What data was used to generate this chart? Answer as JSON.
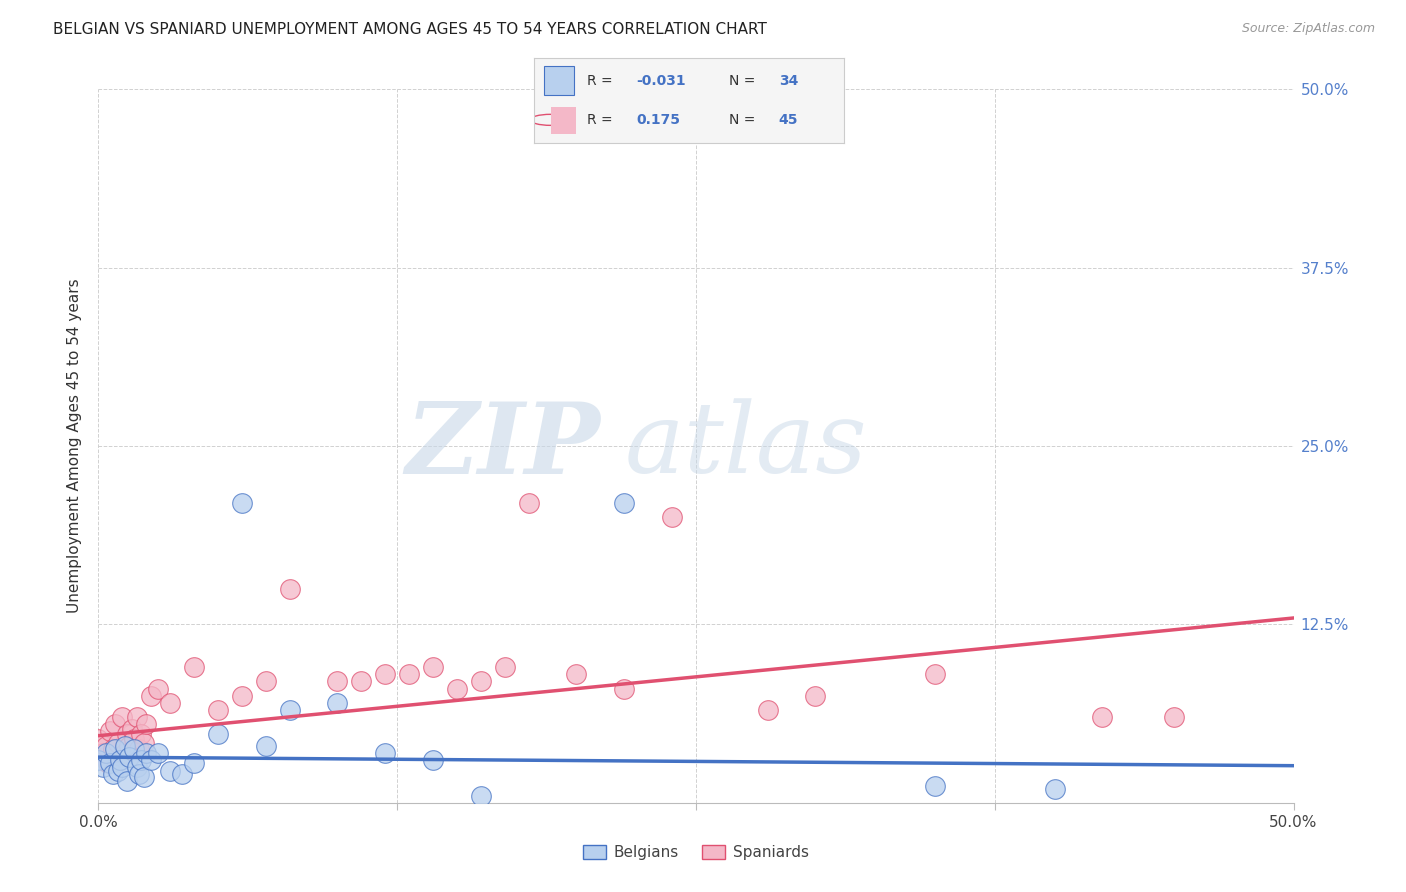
{
  "title": "BELGIAN VS SPANIARD UNEMPLOYMENT AMONG AGES 45 TO 54 YEARS CORRELATION CHART",
  "source": "Source: ZipAtlas.com",
  "ylabel": "Unemployment Among Ages 45 to 54 years",
  "xlim": [
    0.0,
    0.5
  ],
  "ylim": [
    0.0,
    0.5
  ],
  "xticks": [
    0.0,
    0.125,
    0.25,
    0.375,
    0.5
  ],
  "xtick_labels": [
    "0.0%",
    "",
    "",
    "",
    "50.0%"
  ],
  "yticks": [
    0.0,
    0.125,
    0.25,
    0.375,
    0.5
  ],
  "ytick_labels_right": [
    "",
    "12.5%",
    "25.0%",
    "37.5%",
    "50.0%"
  ],
  "background_color": "#ffffff",
  "grid_color": "#cccccc",
  "belgians": {
    "x": [
      0.0,
      0.002,
      0.003,
      0.005,
      0.006,
      0.007,
      0.008,
      0.009,
      0.01,
      0.011,
      0.012,
      0.013,
      0.015,
      0.016,
      0.017,
      0.018,
      0.019,
      0.02,
      0.022,
      0.025,
      0.03,
      0.035,
      0.04,
      0.05,
      0.06,
      0.07,
      0.08,
      0.1,
      0.12,
      0.14,
      0.16,
      0.22,
      0.35,
      0.4
    ],
    "y": [
      0.03,
      0.025,
      0.035,
      0.028,
      0.02,
      0.038,
      0.022,
      0.03,
      0.025,
      0.04,
      0.015,
      0.032,
      0.038,
      0.025,
      0.02,
      0.03,
      0.018,
      0.035,
      0.03,
      0.035,
      0.022,
      0.02,
      0.028,
      0.048,
      0.21,
      0.04,
      0.065,
      0.07,
      0.035,
      0.03,
      0.005,
      0.21,
      0.012,
      0.01
    ],
    "color": "#b8d0ee",
    "edge_color": "#4472c4",
    "R": -0.031,
    "N": 34,
    "line_color": "#4472c4",
    "line_intercept": 0.032,
    "line_slope": -0.012
  },
  "spaniards": {
    "x": [
      0.0,
      0.002,
      0.003,
      0.004,
      0.005,
      0.006,
      0.007,
      0.008,
      0.009,
      0.01,
      0.011,
      0.012,
      0.013,
      0.014,
      0.015,
      0.016,
      0.017,
      0.018,
      0.019,
      0.02,
      0.022,
      0.025,
      0.03,
      0.04,
      0.05,
      0.06,
      0.07,
      0.08,
      0.1,
      0.11,
      0.12,
      0.13,
      0.14,
      0.15,
      0.16,
      0.17,
      0.18,
      0.2,
      0.22,
      0.24,
      0.28,
      0.3,
      0.35,
      0.42,
      0.45
    ],
    "y": [
      0.045,
      0.035,
      0.04,
      0.028,
      0.05,
      0.038,
      0.055,
      0.042,
      0.03,
      0.06,
      0.035,
      0.048,
      0.04,
      0.052,
      0.045,
      0.06,
      0.038,
      0.048,
      0.042,
      0.055,
      0.075,
      0.08,
      0.07,
      0.095,
      0.065,
      0.075,
      0.085,
      0.15,
      0.085,
      0.085,
      0.09,
      0.09,
      0.095,
      0.08,
      0.085,
      0.095,
      0.21,
      0.09,
      0.08,
      0.2,
      0.065,
      0.075,
      0.09,
      0.06,
      0.06
    ],
    "color": "#f4b8c8",
    "edge_color": "#e05070",
    "R": 0.175,
    "N": 45,
    "line_color": "#e05070",
    "line_intercept": 0.047,
    "line_slope": 0.165
  },
  "watermark_zip": "ZIP",
  "watermark_atlas": "atlas",
  "watermark_color_zip": "#c8d8e8",
  "watermark_color_atlas": "#c8d8e8",
  "legend_label_color": "#333333",
  "legend_value_color": "#4472c4",
  "legend_bg": "#f5f5f5",
  "legend_border": "#cccccc"
}
